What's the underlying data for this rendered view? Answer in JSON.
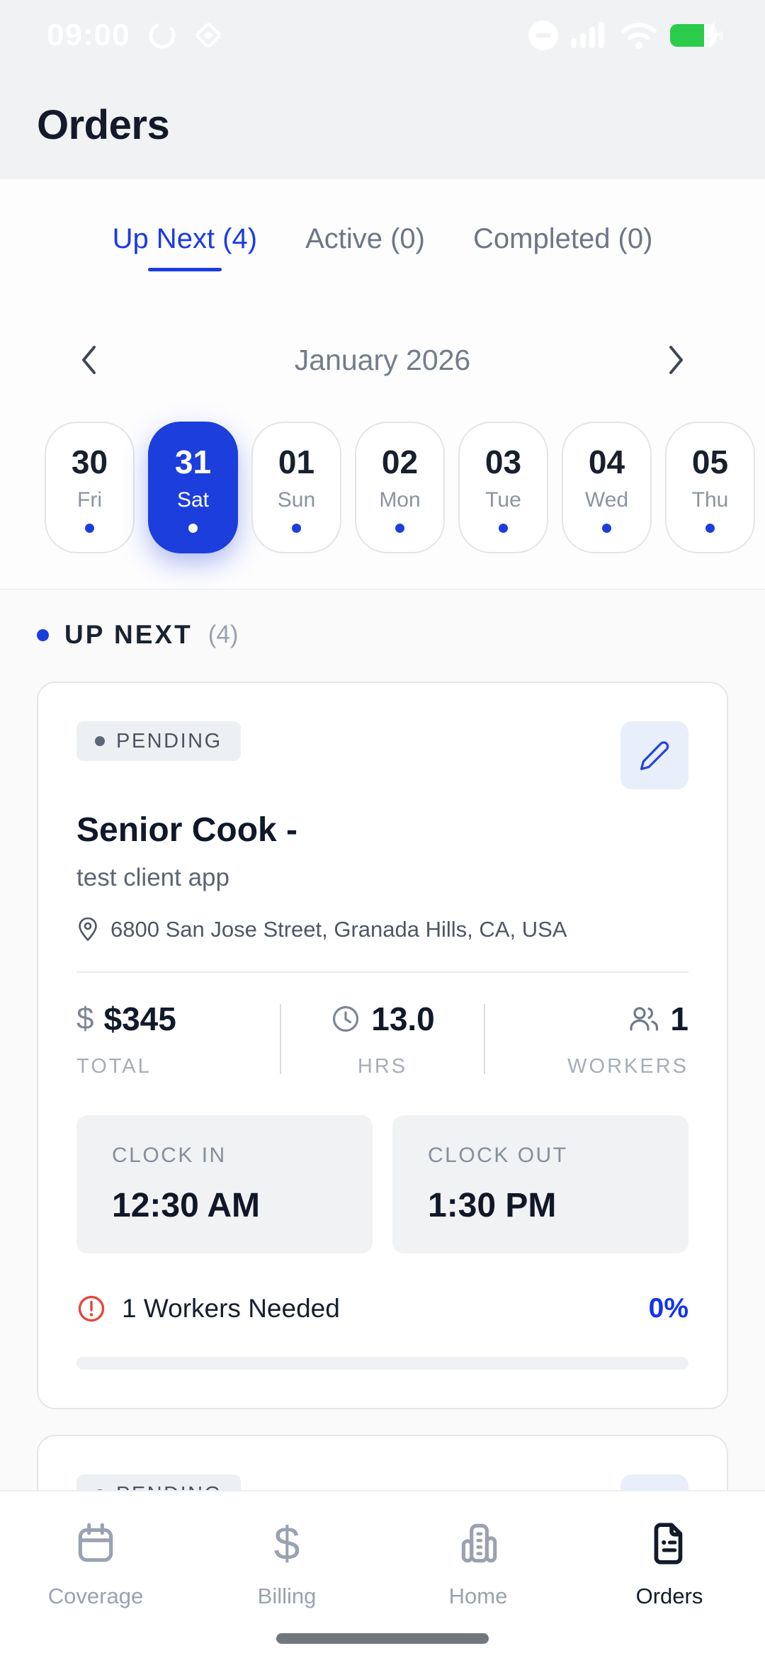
{
  "status_bar": {
    "time": "09:00"
  },
  "header": {
    "title": "Orders"
  },
  "tabs": [
    {
      "label": "Up Next (4)",
      "active": true
    },
    {
      "label": "Active (0)",
      "active": false
    },
    {
      "label": "Completed (0)",
      "active": false
    }
  ],
  "calendar": {
    "month_label": "January 2026",
    "days": [
      {
        "num": "30",
        "dow": "Fri",
        "selected": false
      },
      {
        "num": "31",
        "dow": "Sat",
        "selected": true
      },
      {
        "num": "01",
        "dow": "Sun",
        "selected": false
      },
      {
        "num": "02",
        "dow": "Mon",
        "selected": false
      },
      {
        "num": "03",
        "dow": "Tue",
        "selected": false
      },
      {
        "num": "04",
        "dow": "Wed",
        "selected": false
      },
      {
        "num": "05",
        "dow": "Thu",
        "selected": false
      }
    ]
  },
  "section": {
    "label": "UP NEXT",
    "count": "(4)"
  },
  "cards": [
    {
      "status": "PENDING",
      "title": "Senior Cook -",
      "client": "test client app",
      "address": "6800 San Jose Street, Granada Hills, CA, USA",
      "stats": {
        "total_value": "$345",
        "total_label": "TOTAL",
        "hrs_value": "13.0",
        "hrs_label": "HRS",
        "workers_value": "1",
        "workers_label": "WORKERS"
      },
      "clock_in_label": "CLOCK IN",
      "clock_in_value": "12:30 AM",
      "clock_out_label": "CLOCK OUT",
      "clock_out_value": "1:30 PM",
      "needed_text": "1 Workers Needed",
      "fill_percent_label": "0%",
      "fill_percent": 0
    },
    {
      "status": "PENDING"
    }
  ],
  "nav": {
    "items": [
      {
        "label": "Coverage",
        "icon": "calendar-icon",
        "active": false
      },
      {
        "label": "Billing",
        "icon": "dollar-icon",
        "active": false
      },
      {
        "label": "Home",
        "icon": "building-icon",
        "active": false
      },
      {
        "label": "Orders",
        "icon": "document-icon",
        "active": true
      }
    ]
  },
  "colors": {
    "accent_blue": "#1C3EDD",
    "tab_blue": "#1B3BE4",
    "percent_blue": "#1334EB",
    "alert_red": "#E5473D",
    "battery_green": "#2BCC4A",
    "navy_text": "#131A2A"
  }
}
